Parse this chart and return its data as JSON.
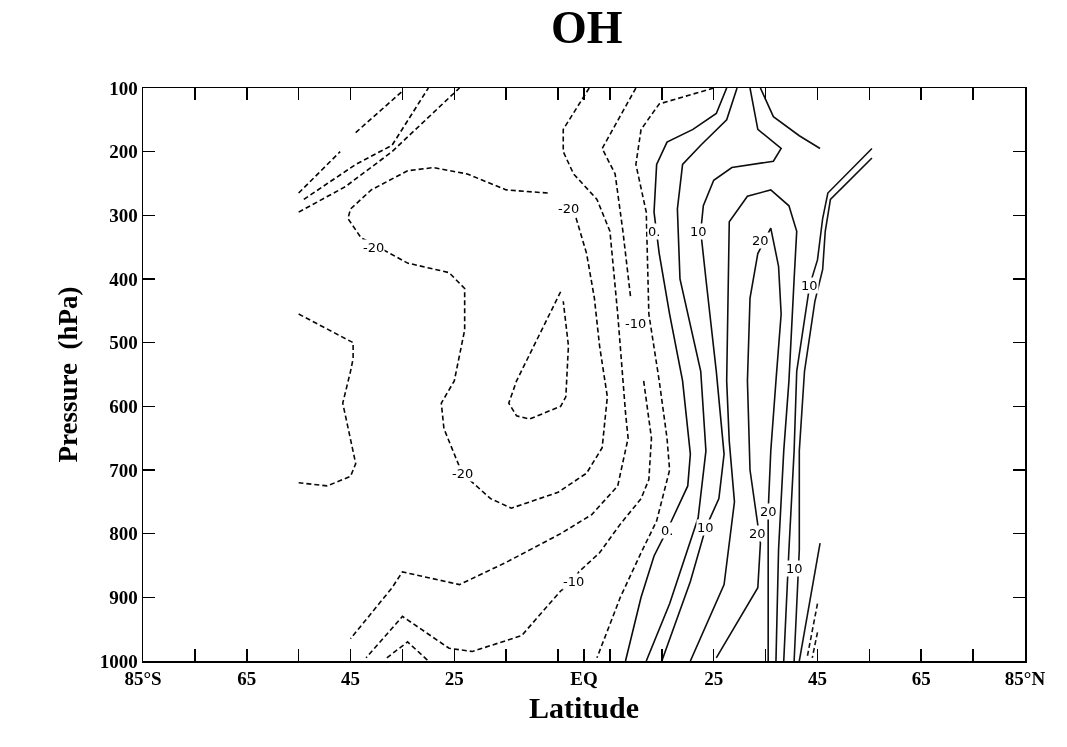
{
  "chart_data": {
    "type": "line",
    "title": "OH",
    "xlabel": "Latitude",
    "ylabel": "Pressure  (hPa)",
    "xlim": [
      -85,
      85
    ],
    "xticks": [
      {
        "value": -85,
        "label": "85°S"
      },
      {
        "value": -75,
        "label": null
      },
      {
        "value": -65,
        "label": "65"
      },
      {
        "value": -55,
        "label": null
      },
      {
        "value": -45,
        "label": "45"
      },
      {
        "value": -35,
        "label": null
      },
      {
        "value": -25,
        "label": "25"
      },
      {
        "value": -15,
        "label": null
      },
      {
        "value": -5,
        "label": null
      },
      {
        "value": 0,
        "label": "EQ"
      },
      {
        "value": 5,
        "label": null
      },
      {
        "value": 15,
        "label": null
      },
      25,
      {
        "value": 35,
        "label": null
      },
      45,
      {
        "value": 55,
        "label": null
      },
      65,
      {
        "value": 75,
        "label": null
      },
      {
        "value": 85,
        "label": "85°N"
      }
    ],
    "ylim": [
      1000,
      100
    ],
    "yticks": [
      100,
      200,
      300,
      400,
      500,
      600,
      700,
      800,
      900,
      1000
    ],
    "grid": false,
    "marker": "none",
    "series": [
      {
        "color": "#010101",
        "line_style": "dashed",
        "x": [
          -55,
          -47,
          null,
          -44,
          -35
        ],
        "values": [
          265,
          200,
          null,
          170,
          105
        ]
      },
      {
        "color": "#020202",
        "line_style": "dashed",
        "x": [
          -54,
          -44,
          -37,
          -30
        ],
        "values": [
          275,
          220,
          190,
          100
        ]
      },
      {
        "color": "#030303",
        "line_style": "dashed",
        "x": [
          -55,
          -46,
          -37,
          -24
        ],
        "values": [
          295,
          255,
          200,
          100
        ]
      },
      {
        "color": "#040404",
        "line_style": "dashed",
        "x": [
          -7,
          -15,
          -22.5,
          -29,
          -34,
          -41,
          -45,
          -45.5,
          -43,
          -34,
          -26,
          -23,
          -23,
          -25,
          -27.5,
          -27,
          -23.5,
          -18,
          -14,
          -5,
          0.5,
          3.5,
          4.5,
          3,
          2,
          0.5,
          -1.5,
          -3
        ],
        "values": [
          265,
          260,
          235,
          225,
          230,
          260,
          290,
          305,
          335,
          375,
          390,
          415,
          480,
          560,
          595,
          635,
          705,
          745,
          760,
          735,
          705,
          665,
          585,
          505,
          430,
          360,
          305,
          290
        ]
      },
      {
        "color": "#050505",
        "line_style": "dashed",
        "x": [
          -4.5,
          -13,
          -14.5,
          -13,
          -10.5,
          -4.5,
          -3.5,
          -3,
          -4
        ],
        "values": [
          420,
          560,
          595,
          615,
          620,
          600,
          585,
          505,
          435
        ]
      },
      {
        "color": "#060606",
        "line_style": "dashed",
        "x": [
          1,
          -4,
          -4,
          -2,
          2.5,
          5,
          6.5,
          8,
          8.5,
          6.5,
          1.5,
          -4.5,
          -15,
          -24,
          -35,
          -37,
          -45
        ],
        "values": [
          100,
          165,
          200,
          235,
          275,
          325,
          455,
          610,
          650,
          725,
          770,
          800,
          845,
          880,
          860,
          885,
          965
        ]
      },
      {
        "color": "#070707",
        "line_style": "dashed",
        "x": [
          10,
          3.5,
          6,
          7.5,
          9,
          10,
          11.5,
          13,
          12.5,
          11,
          7,
          3,
          -1,
          -2,
          -4.5,
          -12,
          -21.5,
          -26,
          -35,
          -42
        ],
        "values": [
          100,
          195,
          235,
          325,
          430,
          null,
          560,
          650,
          715,
          745,
          785,
          830,
          860,
          875,
          890,
          960,
          985,
          980,
          930,
          995
        ]
      },
      {
        "color": "#080808",
        "line_style": "dashed",
        "x": [
          -38,
          -34,
          -30
        ],
        "values": [
          995,
          970,
          1000
        ]
      },
      {
        "color": "#090909",
        "line_style": "dashed",
        "x": [
          25,
          14.5,
          11,
          10,
          12,
          12.5,
          14.5,
          16,
          16.5,
          14,
          11,
          7,
          2.5
        ],
        "values": [
          100,
          125,
          165,
          220,
          295,
          455,
          560,
          650,
          700,
          780,
          830,
          900,
          995
        ]
      },
      {
        "color": "#0a0a0a",
        "line_style": "dashed",
        "x": [
          -55,
          -44.5,
          -44.5,
          -45,
          -46.5,
          -44,
          -45,
          -49.5,
          -55
        ],
        "values": [
          455,
          500,
          525,
          545,
          595,
          690,
          710,
          725,
          720
        ]
      },
      {
        "color": "#0b0b0b",
        "line_style": "solid",
        "x": [
          27.5,
          25.5,
          21,
          16,
          14,
          13.5,
          14.5,
          16.5,
          19,
          20.5,
          20,
          16,
          13.5,
          11,
          8
        ],
        "values": [
          100,
          140,
          165,
          185,
          220,
          295,
          360,
          455,
          560,
          675,
          725,
          795,
          835,
          900,
          1000
        ]
      },
      {
        "color": "#0c0c0c",
        "line_style": "solid",
        "x": [
          29.5,
          27.5,
          22.5,
          19,
          18,
          18.5,
          22.5,
          23.5,
          22,
          16.5,
          12
        ],
        "values": [
          100,
          150,
          190,
          220,
          290,
          400,
          545,
          670,
          775,
          910,
          1000
        ]
      },
      {
        "color": "#0d0d0d",
        "line_style": "solid",
        "x": [
          32,
          33.5,
          38,
          36.5,
          28.5,
          25,
          23,
          22.5,
          23.5,
          25.5,
          27,
          26,
          23.5,
          20.5,
          15
        ],
        "values": [
          100,
          165,
          195,
          215,
          225,
          245,
          285,
          325,
          400,
          545,
          675,
          745,
          790,
          875,
          1000
        ]
      },
      {
        "color": "#0e0e0e",
        "line_style": "solid",
        "x": [
          20.5,
          27,
          29,
          28,
          27.5,
          28,
          31.5,
          36,
          39.5,
          41,
          40.5,
          39.5,
          38.5,
          37.5,
          37
        ],
        "values": [
          1000,
          880,
          750,
          655,
          560,
          310,
          270,
          260,
          285,
          325,
          400,
          560,
          670,
          825,
          1000
        ]
      },
      {
        "color": "#0f0f0f",
        "line_style": "solid",
        "x": [
          25.5,
          33.5,
          34,
          32,
          31.5,
          32,
          33.5,
          36,
          37.5,
          38,
          37,
          36,
          35.5,
          35.5
        ],
        "values": [
          995,
          885,
          815,
          700,
          560,
          430,
          360,
          320,
          380,
          455,
          560,
          670,
          765,
          1000
        ]
      },
      {
        "color": "#101010",
        "line_style": "solid",
        "x": [
          34,
          36.5,
          41.5,
          45.5
        ],
        "values": [
          100,
          145,
          175,
          195
        ]
      },
      {
        "color": "#111111",
        "line_style": "solid",
        "x": [
          55.5,
          47,
          46,
          45,
          43.5,
          41,
          40.5,
          39.5,
          38.5
        ],
        "values": [
          195,
          265,
          305,
          370,
          410,
          545,
          670,
          825,
          1000
        ]
      },
      {
        "color": "#121212",
        "line_style": "solid",
        "x": [
          55.5,
          47.5,
          46.5,
          46,
          44.5,
          42.5,
          41.5,
          41.5,
          40.5
        ],
        "values": [
          210,
          275,
          325,
          385,
          435,
          545,
          670,
          825,
          1000
        ]
      },
      {
        "color": "#131313",
        "line_style": "solid",
        "x": [
          45.5,
          41.5
        ],
        "values": [
          815,
          1000
        ]
      },
      {
        "color": "#141414",
        "line_style": "dashed",
        "x": [
          45,
          43
        ],
        "values": [
          910,
          995
        ]
      },
      {
        "color": "#151515",
        "line_style": "dashed",
        "x": [
          45,
          44
        ],
        "values": [
          955,
          995
        ]
      }
    ],
    "annotations": [
      {
        "text": "-20",
        "x": -40.5,
        "y": 350
      },
      {
        "text": "-20",
        "x": -3,
        "y": 290
      },
      {
        "text": "-20",
        "x": -23.5,
        "y": 705
      },
      {
        "text": "-10",
        "x": 10,
        "y": 470
      },
      {
        "text": "-10",
        "x": -2,
        "y": 875
      },
      {
        "text": "0.",
        "x": 13.5,
        "y": 325
      },
      {
        "text": "10",
        "x": 22,
        "y": 325
      },
      {
        "text": "20",
        "x": 34,
        "y": 340
      },
      {
        "text": "10",
        "x": 43.5,
        "y": 410
      },
      {
        "text": "0.",
        "x": 16,
        "y": 795
      },
      {
        "text": "10",
        "x": 23.5,
        "y": 790
      },
      {
        "text": "20",
        "x": 33.5,
        "y": 800
      },
      {
        "text": "20",
        "x": 35.5,
        "y": 765
      },
      {
        "text": "10",
        "x": 40.5,
        "y": 855
      }
    ]
  }
}
